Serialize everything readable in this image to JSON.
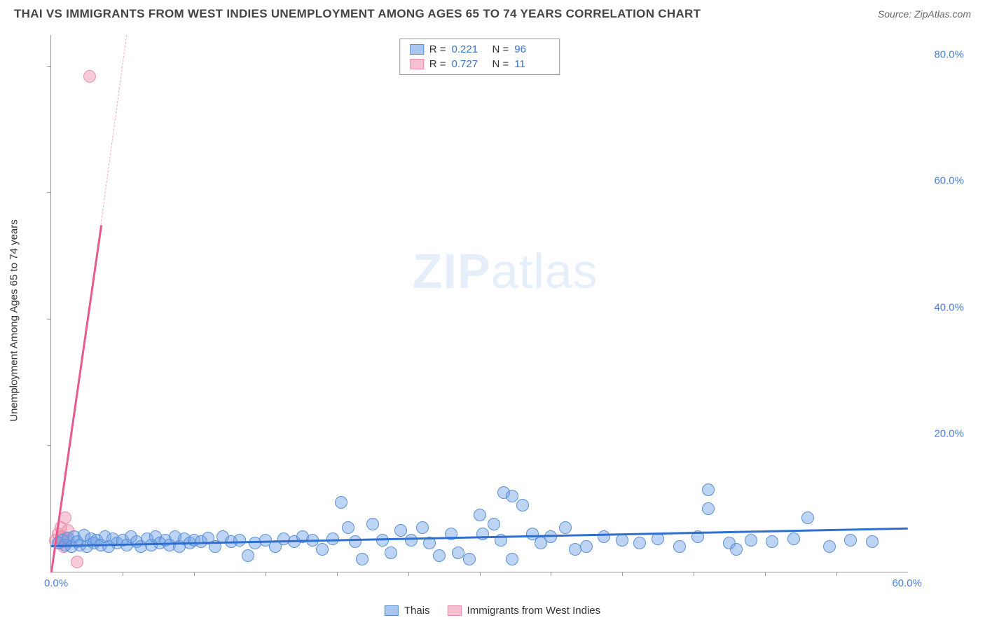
{
  "header": {
    "title": "THAI VS IMMIGRANTS FROM WEST INDIES UNEMPLOYMENT AMONG AGES 65 TO 74 YEARS CORRELATION CHART",
    "source": "Source: ZipAtlas.com"
  },
  "chart": {
    "type": "scatter",
    "y_axis_label": "Unemployment Among Ages 65 to 74 years",
    "xlim": [
      0,
      60
    ],
    "ylim": [
      0,
      85
    ],
    "x_origin_label": "0.0%",
    "x_end_label": "60.0%",
    "y_tick_labels": [
      "20.0%",
      "40.0%",
      "60.0%",
      "80.0%"
    ],
    "y_tick_values": [
      20,
      40,
      60,
      80
    ],
    "x_tick_step": 5,
    "background_color": "#ffffff",
    "axis_color": "#999999",
    "watermark_text_bold": "ZIP",
    "watermark_text_light": "atlas",
    "series": {
      "thais": {
        "label": "Thais",
        "fill_color": "rgba(110,160,230,0.45)",
        "stroke_color": "#5a8fd6",
        "swatch_fill": "#a9c6ef",
        "swatch_border": "#5a8fd6",
        "r_value": "0.221",
        "n_value": "96",
        "marker_radius": 9,
        "trend": {
          "x1": 0,
          "y1": 4.2,
          "x2": 60,
          "y2": 7.0,
          "color": "#2f6fd0",
          "width": 2.5
        },
        "points": [
          [
            0.5,
            4.5
          ],
          [
            0.8,
            5.0
          ],
          [
            1.0,
            4.2
          ],
          [
            1.2,
            5.3
          ],
          [
            1.4,
            4.0
          ],
          [
            1.6,
            5.5
          ],
          [
            1.8,
            4.8
          ],
          [
            2.0,
            4.2
          ],
          [
            2.3,
            5.8
          ],
          [
            2.5,
            4.0
          ],
          [
            2.8,
            5.2
          ],
          [
            3.0,
            4.5
          ],
          [
            3.2,
            5.0
          ],
          [
            3.5,
            4.2
          ],
          [
            3.8,
            5.5
          ],
          [
            4.0,
            4.0
          ],
          [
            4.3,
            5.2
          ],
          [
            4.6,
            4.5
          ],
          [
            5.0,
            5.0
          ],
          [
            5.3,
            4.2
          ],
          [
            5.6,
            5.5
          ],
          [
            6.0,
            4.8
          ],
          [
            6.3,
            4.0
          ],
          [
            6.7,
            5.2
          ],
          [
            7.0,
            4.2
          ],
          [
            7.3,
            5.5
          ],
          [
            7.6,
            4.5
          ],
          [
            8.0,
            5.0
          ],
          [
            8.3,
            4.2
          ],
          [
            8.7,
            5.5
          ],
          [
            9.0,
            4.0
          ],
          [
            9.3,
            5.2
          ],
          [
            9.7,
            4.5
          ],
          [
            10.0,
            5.0
          ],
          [
            10.5,
            4.8
          ],
          [
            11.0,
            5.3
          ],
          [
            11.5,
            4.0
          ],
          [
            12.0,
            5.5
          ],
          [
            12.6,
            4.8
          ],
          [
            13.2,
            5.0
          ],
          [
            13.8,
            2.5
          ],
          [
            14.3,
            4.5
          ],
          [
            15.0,
            5.0
          ],
          [
            15.7,
            4.0
          ],
          [
            16.3,
            5.2
          ],
          [
            17.0,
            4.8
          ],
          [
            17.6,
            5.5
          ],
          [
            18.3,
            5.0
          ],
          [
            19.0,
            3.5
          ],
          [
            19.7,
            5.2
          ],
          [
            20.3,
            11.0
          ],
          [
            20.8,
            7.0
          ],
          [
            21.3,
            4.8
          ],
          [
            21.8,
            2.0
          ],
          [
            22.5,
            7.5
          ],
          [
            23.2,
            5.0
          ],
          [
            23.8,
            3.0
          ],
          [
            24.5,
            6.5
          ],
          [
            25.2,
            5.0
          ],
          [
            26.0,
            7.0
          ],
          [
            26.5,
            4.5
          ],
          [
            27.2,
            2.5
          ],
          [
            28.0,
            6.0
          ],
          [
            28.5,
            3.0
          ],
          [
            29.3,
            2.0
          ],
          [
            30.0,
            9.0
          ],
          [
            30.2,
            6.0
          ],
          [
            31.0,
            7.5
          ],
          [
            31.5,
            5.0
          ],
          [
            31.7,
            12.5
          ],
          [
            32.3,
            12.0
          ],
          [
            32.3,
            2.0
          ],
          [
            33.0,
            10.5
          ],
          [
            33.7,
            6.0
          ],
          [
            34.3,
            4.5
          ],
          [
            35.0,
            5.5
          ],
          [
            36.0,
            7.0
          ],
          [
            36.7,
            3.5
          ],
          [
            37.5,
            4.0
          ],
          [
            38.7,
            5.5
          ],
          [
            40.0,
            5.0
          ],
          [
            41.2,
            4.5
          ],
          [
            42.5,
            5.2
          ],
          [
            44.0,
            4.0
          ],
          [
            45.3,
            5.5
          ],
          [
            46.0,
            13.0
          ],
          [
            46.0,
            10.0
          ],
          [
            47.5,
            4.5
          ],
          [
            48.0,
            3.5
          ],
          [
            49.0,
            5.0
          ],
          [
            50.5,
            4.8
          ],
          [
            52.0,
            5.2
          ],
          [
            53.0,
            8.5
          ],
          [
            54.5,
            4.0
          ],
          [
            56.0,
            5.0
          ],
          [
            57.5,
            4.8
          ]
        ]
      },
      "west_indies": {
        "label": "Immigrants from West Indies",
        "fill_color": "rgba(240,140,170,0.45)",
        "stroke_color": "#e88fb0",
        "swatch_fill": "#f5c0d2",
        "swatch_border": "#e88fb0",
        "r_value": "0.727",
        "n_value": "11",
        "marker_radius": 9,
        "trend_solid": {
          "x1": 0,
          "y1": 0,
          "x2": 3.5,
          "y2": 55,
          "color": "#e85a8f",
          "width": 2.5
        },
        "trend_dashed": {
          "x1": 3.5,
          "y1": 55,
          "x2": 5.3,
          "y2": 85,
          "color": "#f0a8c2",
          "width": 1
        },
        "points": [
          [
            0.3,
            5.0
          ],
          [
            0.5,
            6.0
          ],
          [
            0.6,
            4.5
          ],
          [
            0.7,
            7.0
          ],
          [
            0.8,
            5.5
          ],
          [
            0.9,
            4.0
          ],
          [
            1.0,
            8.5
          ],
          [
            1.1,
            5.0
          ],
          [
            1.2,
            6.5
          ],
          [
            1.8,
            1.5
          ],
          [
            2.7,
            78.5
          ]
        ]
      }
    },
    "stats_legend": {
      "r_label": "R  =",
      "n_label": "N  ="
    }
  }
}
